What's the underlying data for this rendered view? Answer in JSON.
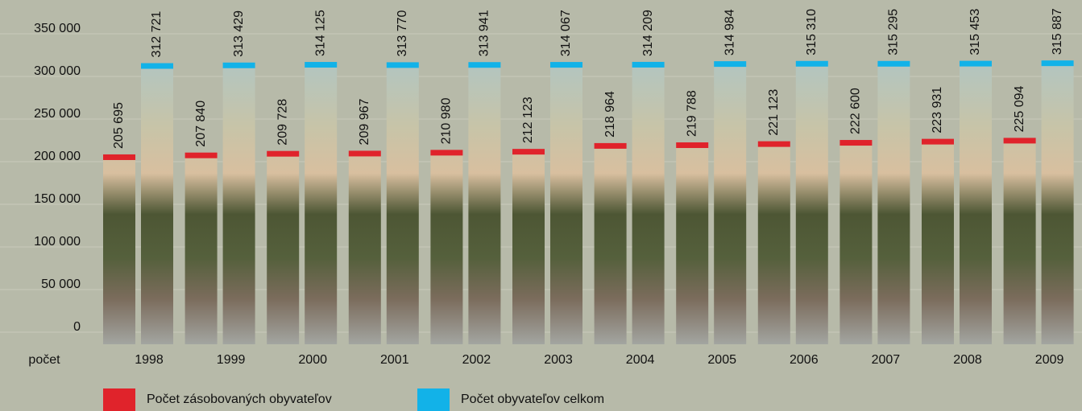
{
  "chart_data": {
    "type": "bar",
    "x_label": "počet",
    "categories": [
      "1998",
      "1999",
      "2000",
      "2001",
      "2002",
      "2003",
      "2004",
      "2005",
      "2006",
      "2007",
      "2008",
      "2009"
    ],
    "series": [
      {
        "name": "Počet zásobovaných obyvateľov",
        "color": "#e0232b",
        "values": [
          205695,
          207840,
          209728,
          209967,
          210980,
          212123,
          218964,
          219788,
          221123,
          222600,
          223931,
          225094
        ],
        "value_labels": [
          "205 695",
          "207 840",
          "209 728",
          "209 967",
          "210 980",
          "212 123",
          "218 964",
          "219 788",
          "221 123",
          "222 600",
          "223 931",
          "225 094"
        ]
      },
      {
        "name": "Počet obyvateľov  celkom",
        "color": "#12b2e8",
        "values": [
          312721,
          313429,
          314125,
          313770,
          313941,
          314067,
          314209,
          314984,
          315310,
          315295,
          315453,
          315887
        ],
        "value_labels": [
          "312 721",
          "313 429",
          "314 125",
          "313 770",
          "313 941",
          "314 067",
          "314 209",
          "314 984",
          "315 310",
          "315 295",
          "315 453",
          "315 887"
        ]
      }
    ],
    "ylim": [
      0,
      350000
    ],
    "yticks": [
      0,
      {
        "value": 50000,
        "label": "50 000"
      },
      {
        "value": 100000,
        "label": "100 000"
      },
      {
        "value": 150000,
        "label": "150 000"
      },
      {
        "value": 200000,
        "label": "200 000"
      },
      {
        "value": 250000,
        "label": "250 000"
      },
      {
        "value": 300000,
        "label": "300 000"
      },
      {
        "value": 350000,
        "label": "350 000"
      }
    ],
    "grid": true
  }
}
